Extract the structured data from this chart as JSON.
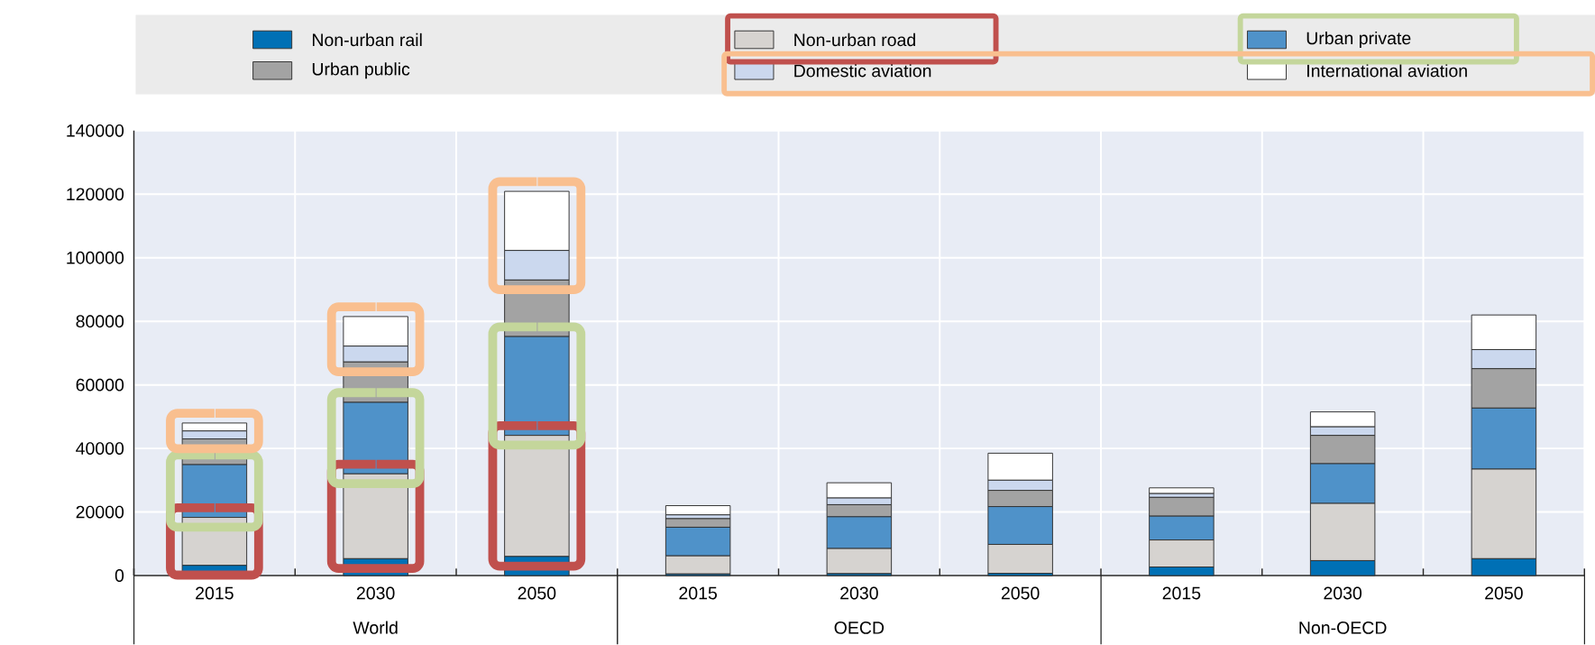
{
  "chart_data": {
    "type": "bar",
    "stacked": true,
    "categories": [
      "2015",
      "2030",
      "2050",
      "2015",
      "2030",
      "2050",
      "2015",
      "2030",
      "2050"
    ],
    "annotations": [
      "World",
      "OECD",
      "Non-OECD"
    ],
    "ylim": [
      0,
      140000
    ],
    "yticks": [
      0,
      20000,
      40000,
      60000,
      80000,
      100000,
      120000,
      140000
    ],
    "grid": true,
    "legend": "top",
    "series": [
      {
        "name": "Non-urban rail",
        "color": "#0070b5",
        "values": [
          3200,
          5300,
          6000,
          500,
          600,
          700,
          2700,
          4700,
          5300
        ]
      },
      {
        "name": "Non-urban road",
        "color": "#d6d3d0",
        "values": [
          15100,
          26700,
          38100,
          5700,
          7900,
          9100,
          8500,
          18000,
          28200
        ]
      },
      {
        "name": "Urban private",
        "color": "#4f92c9",
        "values": [
          16600,
          22500,
          31100,
          9000,
          10000,
          11900,
          7500,
          12500,
          19200
        ]
      },
      {
        "name": "Urban public",
        "color": "#a3a3a3",
        "values": [
          8100,
          12700,
          17800,
          2700,
          3800,
          5100,
          5900,
          8900,
          12400
        ]
      },
      {
        "name": "Domestic aviation",
        "color": "#cbd8ee",
        "values": [
          2500,
          5000,
          9300,
          1200,
          2100,
          3200,
          1200,
          2700,
          6000
        ]
      },
      {
        "name": "International aviation",
        "color": "#ffffff",
        "values": [
          2500,
          9300,
          18600,
          2900,
          4800,
          8500,
          1800,
          4700,
          10900
        ]
      }
    ]
  }
}
